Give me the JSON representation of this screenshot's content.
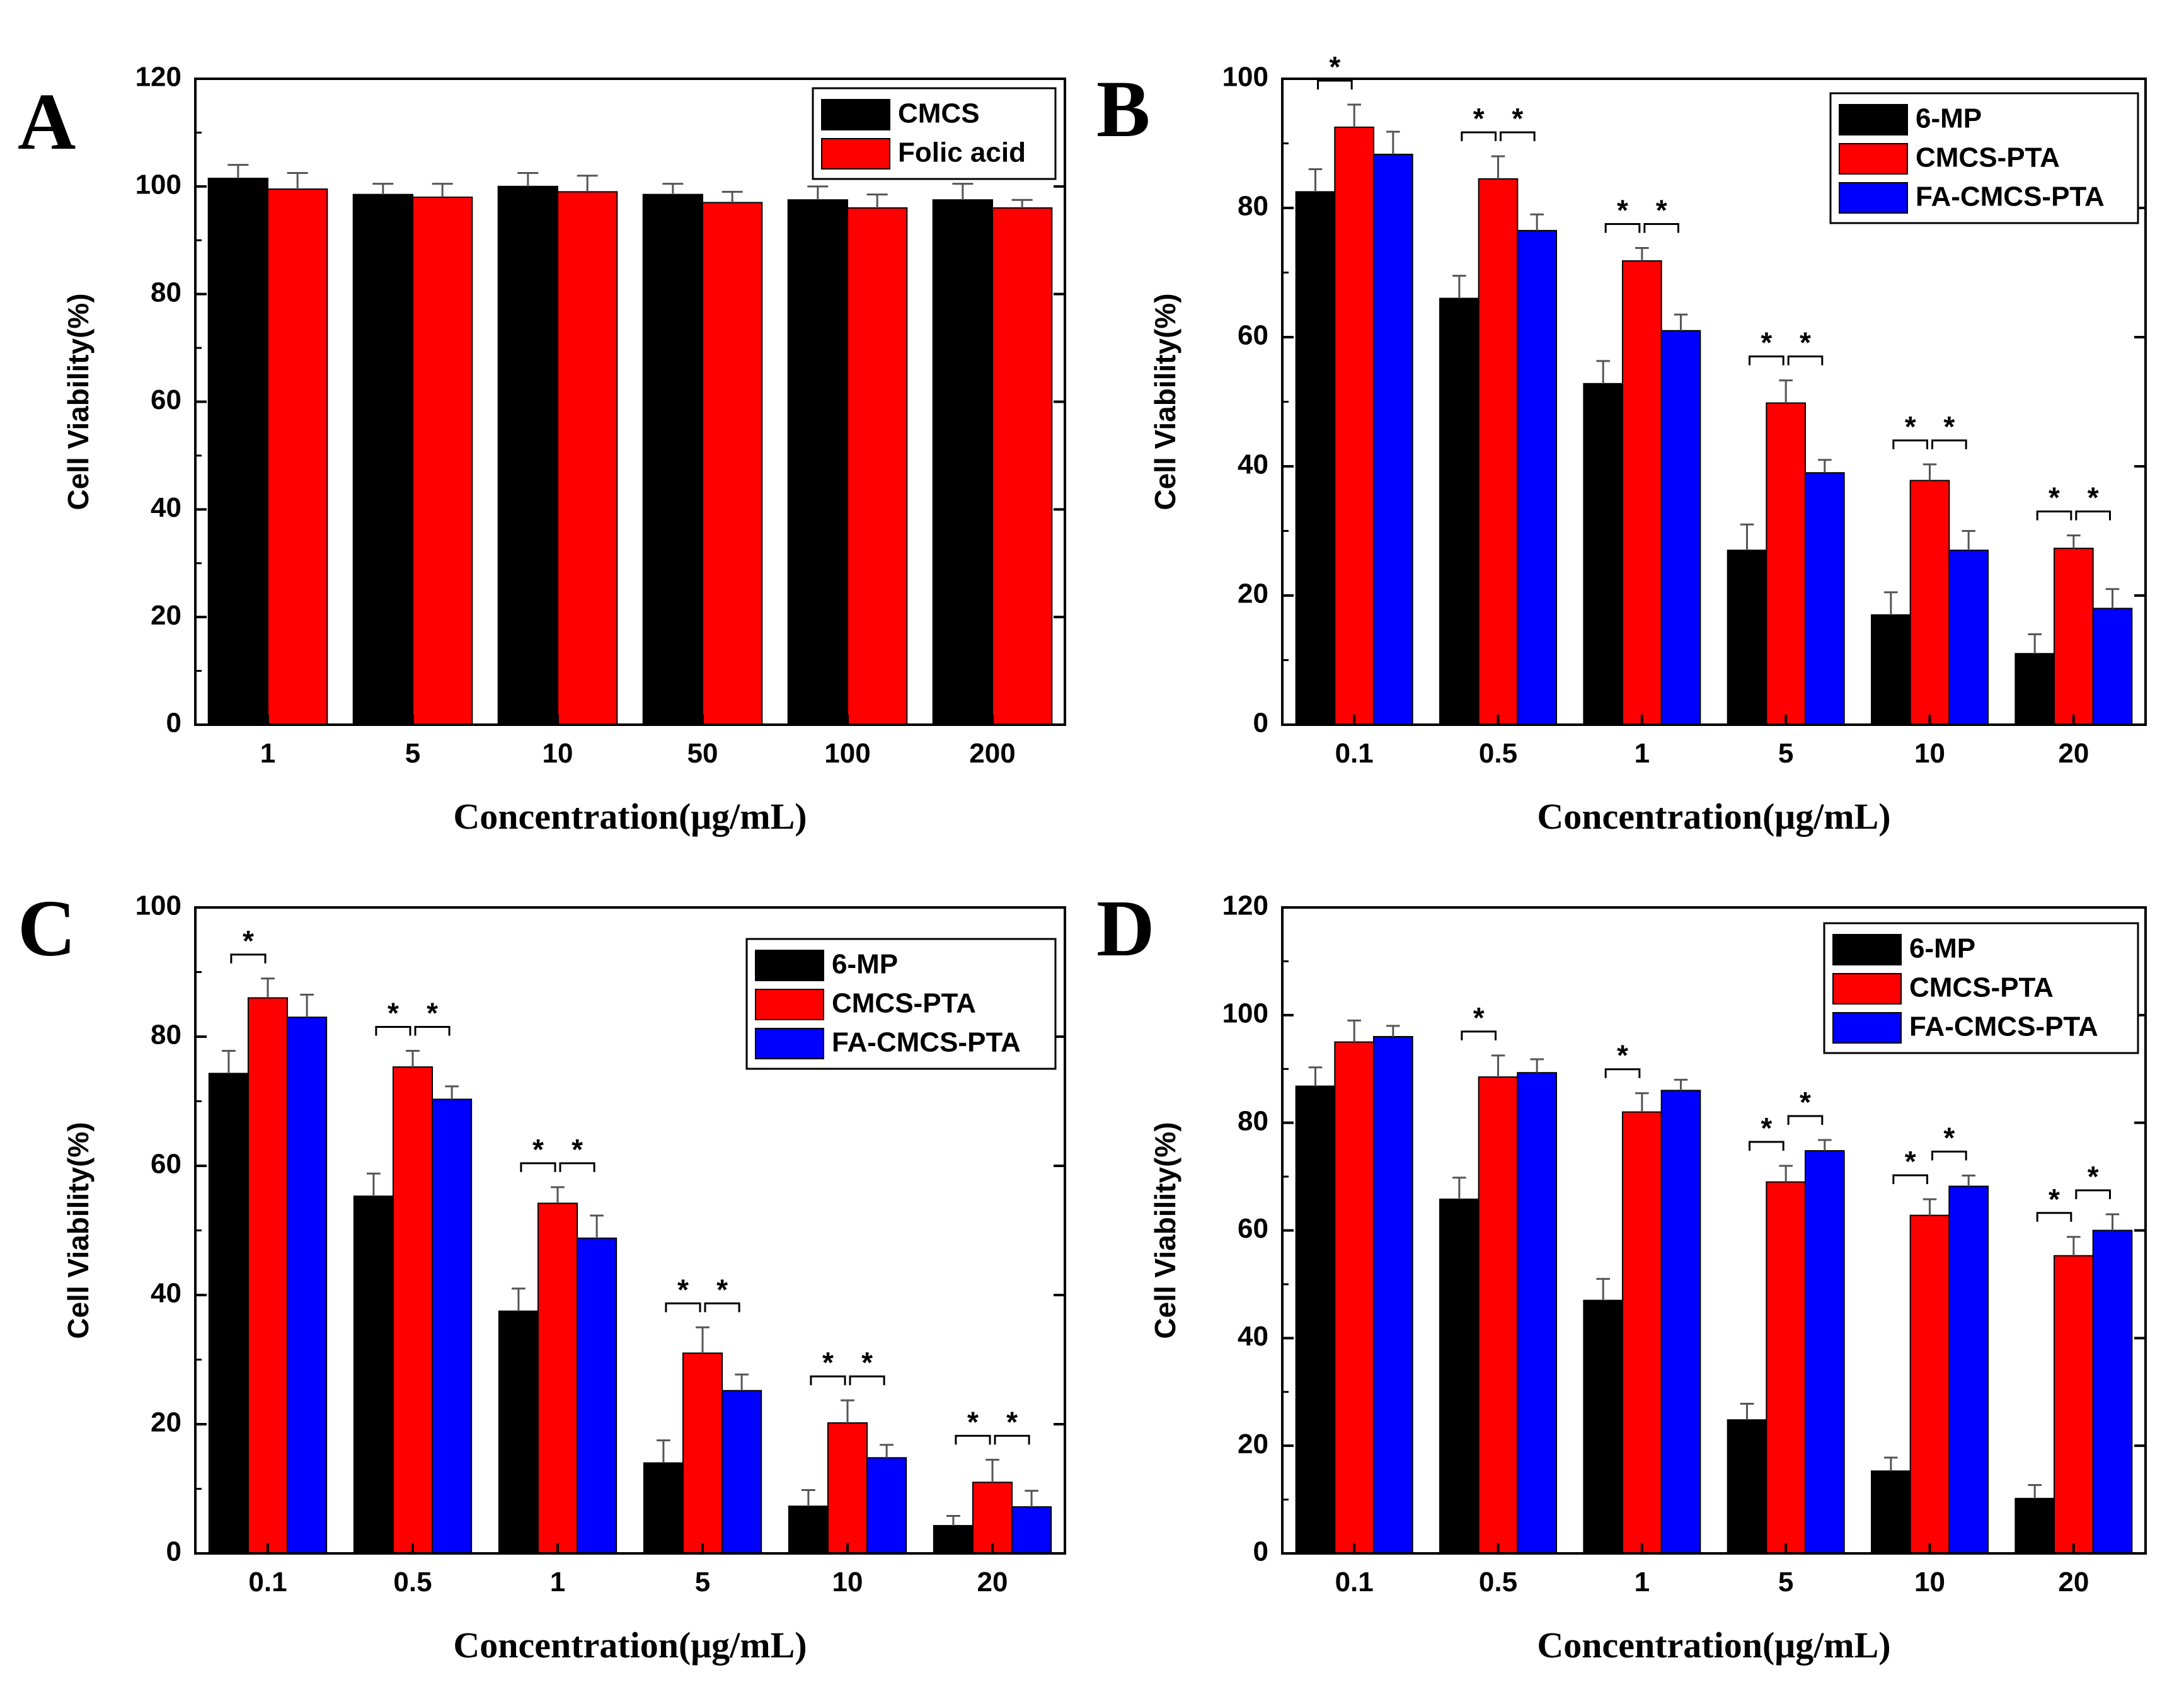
{
  "chart_data": [
    {
      "panel": "A",
      "type": "bar",
      "xlabel": "Concentration(μg/mL)",
      "ylabel": "Cell Viability(%)",
      "ylim": [
        0,
        120
      ],
      "yticks": [
        0,
        20,
        40,
        60,
        80,
        100,
        120
      ],
      "categories": [
        "1",
        "5",
        "10",
        "50",
        "100",
        "200"
      ],
      "legend_position": "top-right",
      "series": [
        {
          "name": "CMCS",
          "color": "#000000",
          "values": [
            101.5,
            98.5,
            100,
            98.5,
            97.5,
            97.5
          ],
          "errors": [
            2.5,
            2.0,
            2.5,
            2.0,
            2.5,
            3.0
          ]
        },
        {
          "name": "Folic acid",
          "color": "#ff0000",
          "values": [
            99.5,
            98,
            99,
            97,
            96,
            96
          ],
          "errors": [
            3.0,
            2.5,
            3.0,
            2.0,
            2.5,
            1.5
          ]
        }
      ],
      "significance": []
    },
    {
      "panel": "B",
      "type": "bar",
      "xlabel": "Concentration(μg/mL)",
      "ylabel": "Cell Viability(%)",
      "ylim": [
        0,
        100
      ],
      "yticks": [
        0,
        20,
        40,
        60,
        80,
        100
      ],
      "categories": [
        "0.1",
        "0.5",
        "1",
        "5",
        "10",
        "20"
      ],
      "legend_position": "top-right",
      "series": [
        {
          "name": "6-MP",
          "color": "#000000",
          "values": [
            82.5,
            66.0,
            52.8,
            27.0,
            17.0,
            11.0
          ],
          "errors": [
            3.5,
            3.5,
            3.5,
            4.0,
            3.5,
            3.0
          ]
        },
        {
          "name": "CMCS-PTA",
          "color": "#ff0000",
          "values": [
            92.5,
            84.5,
            71.8,
            49.8,
            37.8,
            27.3
          ],
          "errors": [
            3.5,
            3.5,
            2.0,
            3.5,
            2.5,
            2.0
          ]
        },
        {
          "name": "FA-CMCS-PTA",
          "color": "#0000ff",
          "values": [
            88.3,
            76.5,
            61.0,
            39.0,
            27.0,
            18.0
          ],
          "errors": [
            3.5,
            2.5,
            2.5,
            2.0,
            3.0,
            3.0
          ]
        }
      ],
      "significance": [
        {
          "category": 0,
          "pair": [
            0,
            1
          ],
          "label": "*"
        },
        {
          "category": 1,
          "pair": [
            0,
            1
          ],
          "label": "*"
        },
        {
          "category": 1,
          "pair": [
            1,
            2
          ],
          "label": "*"
        },
        {
          "category": 2,
          "pair": [
            0,
            1
          ],
          "label": "*"
        },
        {
          "category": 2,
          "pair": [
            1,
            2
          ],
          "label": "*"
        },
        {
          "category": 3,
          "pair": [
            0,
            1
          ],
          "label": "*"
        },
        {
          "category": 3,
          "pair": [
            1,
            2
          ],
          "label": "*"
        },
        {
          "category": 4,
          "pair": [
            0,
            1
          ],
          "label": "*"
        },
        {
          "category": 4,
          "pair": [
            1,
            2
          ],
          "label": "*"
        },
        {
          "category": 5,
          "pair": [
            0,
            1
          ],
          "label": "*"
        },
        {
          "category": 5,
          "pair": [
            1,
            2
          ],
          "label": "*"
        }
      ]
    },
    {
      "panel": "C",
      "type": "bar",
      "xlabel": "Concentration(μg/mL)",
      "ylabel": "Cell Viability(%)",
      "ylim": [
        0,
        100
      ],
      "yticks": [
        0,
        20,
        40,
        60,
        80,
        100
      ],
      "categories": [
        "0.1",
        "0.5",
        "1",
        "5",
        "10",
        "20"
      ],
      "legend_position": "top-right",
      "series": [
        {
          "name": "6-MP",
          "color": "#000000",
          "values": [
            74.3,
            55.3,
            37.5,
            14.0,
            7.3,
            4.3
          ],
          "errors": [
            3.5,
            3.5,
            3.5,
            3.5,
            2.5,
            1.5
          ]
        },
        {
          "name": "CMCS-PTA",
          "color": "#ff0000",
          "values": [
            86.0,
            75.3,
            54.2,
            31.0,
            20.2,
            11.0
          ],
          "errors": [
            3.0,
            2.5,
            2.5,
            4.0,
            3.5,
            3.5
          ]
        },
        {
          "name": "FA-CMCS-PTA",
          "color": "#0000ff",
          "values": [
            83.0,
            70.3,
            48.8,
            25.2,
            14.8,
            7.2
          ],
          "errors": [
            3.5,
            2.0,
            3.5,
            2.5,
            2.0,
            2.5
          ]
        }
      ],
      "significance": [
        {
          "category": 0,
          "pair": [
            0,
            1
          ],
          "label": "*"
        },
        {
          "category": 1,
          "pair": [
            0,
            1
          ],
          "label": "*"
        },
        {
          "category": 1,
          "pair": [
            1,
            2
          ],
          "label": "*"
        },
        {
          "category": 2,
          "pair": [
            0,
            1
          ],
          "label": "*"
        },
        {
          "category": 2,
          "pair": [
            1,
            2
          ],
          "label": "*"
        },
        {
          "category": 3,
          "pair": [
            0,
            1
          ],
          "label": "*"
        },
        {
          "category": 3,
          "pair": [
            1,
            2
          ],
          "label": "*"
        },
        {
          "category": 4,
          "pair": [
            0,
            1
          ],
          "label": "*"
        },
        {
          "category": 4,
          "pair": [
            1,
            2
          ],
          "label": "*"
        },
        {
          "category": 5,
          "pair": [
            0,
            1
          ],
          "label": "*"
        },
        {
          "category": 5,
          "pair": [
            1,
            2
          ],
          "label": "*"
        }
      ]
    },
    {
      "panel": "D",
      "type": "bar",
      "xlabel": "Concentration(μg/mL)",
      "ylabel": "Cell Viability(%)",
      "ylim": [
        0,
        120
      ],
      "yticks": [
        0,
        20,
        40,
        60,
        80,
        100,
        120
      ],
      "categories": [
        "0.1",
        "0.5",
        "1",
        "5",
        "10",
        "20"
      ],
      "legend_position": "top-right",
      "series": [
        {
          "name": "6-MP",
          "color": "#000000",
          "values": [
            86.8,
            65.8,
            47.0,
            24.8,
            15.3,
            10.2
          ],
          "errors": [
            3.5,
            4.0,
            4.0,
            3.0,
            2.5,
            2.5
          ]
        },
        {
          "name": "CMCS-PTA",
          "color": "#ff0000",
          "values": [
            95.0,
            88.5,
            82.0,
            69.0,
            62.8,
            55.3
          ],
          "errors": [
            4.0,
            4.0,
            3.5,
            3.0,
            3.0,
            3.5
          ]
        },
        {
          "name": "FA-CMCS-PTA",
          "color": "#0000ff",
          "values": [
            96.0,
            89.3,
            86.0,
            74.8,
            68.2,
            60.0
          ],
          "errors": [
            2.0,
            2.5,
            2.0,
            2.0,
            2.0,
            3.0
          ]
        }
      ],
      "significance": [
        {
          "category": 1,
          "pair": [
            0,
            1
          ],
          "label": "*"
        },
        {
          "category": 2,
          "pair": [
            0,
            1
          ],
          "label": "*"
        },
        {
          "category": 3,
          "pair": [
            0,
            1
          ],
          "label": "*"
        },
        {
          "category": 3,
          "pair": [
            1,
            2
          ],
          "label": "*"
        },
        {
          "category": 4,
          "pair": [
            0,
            1
          ],
          "label": "*"
        },
        {
          "category": 4,
          "pair": [
            1,
            2
          ],
          "label": "*"
        },
        {
          "category": 5,
          "pair": [
            0,
            1
          ],
          "label": "*"
        },
        {
          "category": 5,
          "pair": [
            1,
            2
          ],
          "label": "*"
        }
      ]
    }
  ]
}
